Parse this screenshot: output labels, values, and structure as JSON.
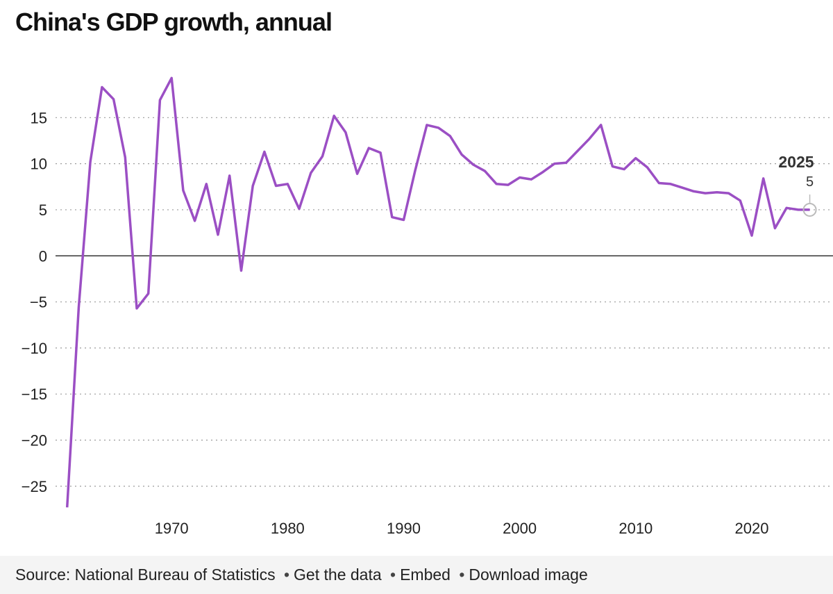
{
  "chart_data": {
    "type": "line",
    "title": "China's GDP growth, annual",
    "x": [
      1961,
      1962,
      1963,
      1964,
      1965,
      1966,
      1967,
      1968,
      1969,
      1970,
      1971,
      1972,
      1973,
      1974,
      1975,
      1976,
      1977,
      1978,
      1979,
      1980,
      1981,
      1982,
      1983,
      1984,
      1985,
      1986,
      1987,
      1988,
      1989,
      1990,
      1991,
      1992,
      1993,
      1994,
      1995,
      1996,
      1997,
      1998,
      1999,
      2000,
      2001,
      2002,
      2003,
      2004,
      2005,
      2006,
      2007,
      2008,
      2009,
      2010,
      2011,
      2012,
      2013,
      2014,
      2015,
      2016,
      2017,
      2018,
      2019,
      2020,
      2021,
      2022,
      2023,
      2024,
      2025
    ],
    "values": [
      -27.3,
      -5.6,
      10.2,
      18.3,
      17.0,
      10.7,
      -5.7,
      -4.1,
      16.9,
      19.3,
      7.1,
      3.8,
      7.8,
      2.3,
      8.7,
      -1.6,
      7.6,
      11.3,
      7.6,
      7.8,
      5.1,
      9.0,
      10.8,
      15.2,
      13.4,
      8.9,
      11.7,
      11.2,
      4.2,
      3.9,
      9.3,
      14.2,
      13.9,
      13.0,
      11.0,
      9.9,
      9.2,
      7.8,
      7.7,
      8.5,
      8.3,
      9.1,
      10.0,
      10.1,
      11.4,
      12.7,
      14.2,
      9.7,
      9.4,
      10.6,
      9.6,
      7.9,
      7.8,
      7.4,
      7.0,
      6.8,
      6.9,
      6.8,
      6.0,
      2.2,
      8.4,
      3.0,
      5.2,
      5.0,
      5
    ],
    "color": "#9b4fc4",
    "xlim": [
      1960,
      2027
    ],
    "xticks": [
      1970,
      1980,
      1990,
      2000,
      2010,
      2020
    ],
    "ylim": [
      -27.5,
      20
    ],
    "yticks": [
      {
        "value": -25,
        "label": "−25"
      },
      {
        "value": -20,
        "label": "−20"
      },
      {
        "value": -15,
        "label": "−15"
      },
      {
        "value": -10,
        "label": "−10"
      },
      {
        "value": -5,
        "label": "−5"
      },
      0,
      5,
      10,
      15
    ],
    "grid": true
  },
  "footer": {
    "source": "Source: National Bureau of Statistics",
    "links": [
      "Get the data",
      "Embed",
      "Download image"
    ]
  }
}
